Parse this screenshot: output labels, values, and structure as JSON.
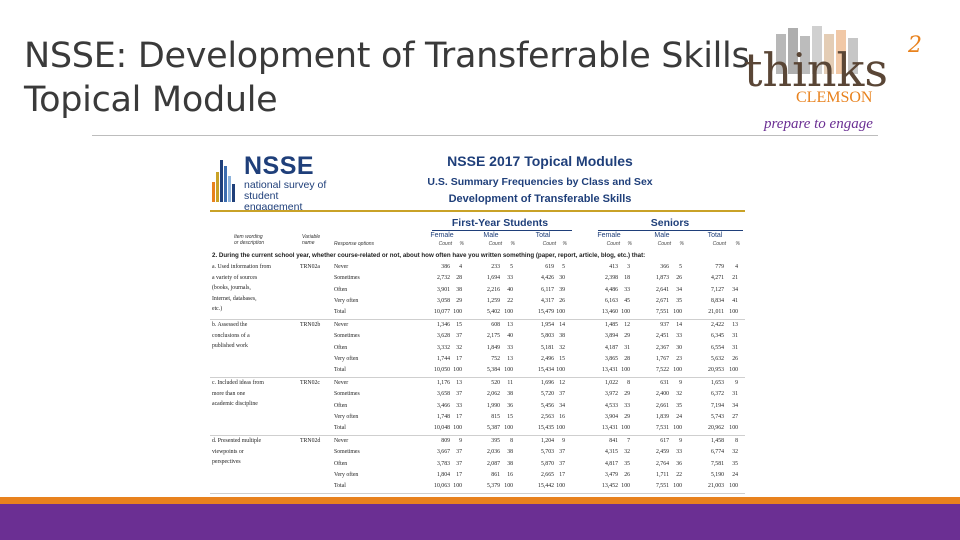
{
  "slide": {
    "title_line1": "NSSE: Development of Transferrable Skills",
    "title_line2": "Topical Module"
  },
  "logo": {
    "brand": "thinks",
    "superscript": "2",
    "institution": "CLEMSON",
    "tagline": "prepare to engage"
  },
  "colors": {
    "orange": "#e8821e",
    "purple": "#6b2f93",
    "nsse_blue": "#1f3f7a",
    "gold": "#c9a227"
  },
  "doc": {
    "nsse_word": "NSSE",
    "nsse_sub1": "national survey of",
    "nsse_sub2": "student engagement",
    "heading": "NSSE 2017 Topical Modules",
    "subheading": "U.S. Summary Frequencies by Class and Sex",
    "module": "Development of Transferable Skills",
    "group_fy": "First-Year Students",
    "group_sr": "Seniors",
    "sub_labels": [
      "Female",
      "Male",
      "Total",
      "Female",
      "Male",
      "Total"
    ],
    "mini_labels": [
      "Count",
      "%",
      "Count",
      "%",
      "Count",
      "%",
      "Count",
      "%",
      "Count",
      "%",
      "Count",
      "%"
    ],
    "col_item1": "Item wording",
    "col_item2": "or description",
    "col_var1": "Variable",
    "col_var2": "name",
    "col_resp": "Response options",
    "question": "2. During the current school year, whether course-related or not, about how often have you written something (paper, report, article, blog, etc.) that:",
    "items": [
      {
        "label": [
          "a. Used information from",
          "a variety of sources",
          "(books, journals,",
          "Internet, databases,",
          "etc.)"
        ],
        "var": "TRN02a",
        "rows": [
          [
            "Never",
            "386",
            "4",
            "233",
            "5",
            "619",
            "5",
            "413",
            "3",
            "366",
            "5",
            "779",
            "4"
          ],
          [
            "Sometimes",
            "2,732",
            "28",
            "1,694",
            "33",
            "4,426",
            "30",
            "2,398",
            "18",
            "1,873",
            "26",
            "4,271",
            "21"
          ],
          [
            "Often",
            "3,901",
            "38",
            "2,216",
            "40",
            "6,117",
            "39",
            "4,486",
            "33",
            "2,641",
            "34",
            "7,127",
            "34"
          ],
          [
            "Very often",
            "3,058",
            "29",
            "1,259",
            "22",
            "4,317",
            "26",
            "6,163",
            "45",
            "2,671",
            "35",
            "8,834",
            "41"
          ],
          [
            "Total",
            "10,077",
            "100",
            "5,402",
            "100",
            "15,479",
            "100",
            "13,460",
            "100",
            "7,551",
            "100",
            "21,011",
            "100"
          ]
        ]
      },
      {
        "label": [
          "b. Assessed the",
          "conclusions of a",
          "published work"
        ],
        "var": "TRN02b",
        "rows": [
          [
            "Never",
            "1,346",
            "15",
            "608",
            "13",
            "1,954",
            "14",
            "1,485",
            "12",
            "937",
            "14",
            "2,422",
            "13"
          ],
          [
            "Sometimes",
            "3,628",
            "37",
            "2,175",
            "40",
            "5,803",
            "38",
            "3,894",
            "29",
            "2,451",
            "33",
            "6,345",
            "31"
          ],
          [
            "Often",
            "3,332",
            "32",
            "1,849",
            "33",
            "5,181",
            "32",
            "4,187",
            "31",
            "2,367",
            "30",
            "6,554",
            "31"
          ],
          [
            "Very often",
            "1,744",
            "17",
            "752",
            "13",
            "2,496",
            "15",
            "3,865",
            "28",
            "1,767",
            "23",
            "5,632",
            "26"
          ],
          [
            "Total",
            "10,050",
            "100",
            "5,384",
            "100",
            "15,434",
            "100",
            "13,431",
            "100",
            "7,522",
            "100",
            "20,953",
            "100"
          ]
        ]
      },
      {
        "label": [
          "c. Included ideas from",
          "more than one",
          "academic discipline"
        ],
        "var": "TRN02c",
        "rows": [
          [
            "Never",
            "1,176",
            "13",
            "520",
            "11",
            "1,696",
            "12",
            "1,022",
            "8",
            "631",
            "9",
            "1,653",
            "9"
          ],
          [
            "Sometimes",
            "3,658",
            "37",
            "2,062",
            "38",
            "5,720",
            "37",
            "3,972",
            "29",
            "2,400",
            "32",
            "6,372",
            "31"
          ],
          [
            "Often",
            "3,466",
            "33",
            "1,990",
            "36",
            "5,456",
            "34",
            "4,533",
            "33",
            "2,661",
            "35",
            "7,194",
            "34"
          ],
          [
            "Very often",
            "1,748",
            "17",
            "815",
            "15",
            "2,563",
            "16",
            "3,904",
            "29",
            "1,839",
            "24",
            "5,743",
            "27"
          ],
          [
            "Total",
            "10,048",
            "100",
            "5,387",
            "100",
            "15,435",
            "100",
            "13,431",
            "100",
            "7,531",
            "100",
            "20,962",
            "100"
          ]
        ]
      },
      {
        "label": [
          "d. Presented multiple",
          "viewpoints or",
          "perspectives"
        ],
        "var": "TRN02d",
        "rows": [
          [
            "Never",
            "809",
            "9",
            "395",
            "8",
            "1,204",
            "9",
            "841",
            "7",
            "617",
            "9",
            "1,458",
            "8"
          ],
          [
            "Sometimes",
            "3,667",
            "37",
            "2,036",
            "38",
            "5,703",
            "37",
            "4,315",
            "32",
            "2,459",
            "33",
            "6,774",
            "32"
          ],
          [
            "Often",
            "3,783",
            "37",
            "2,087",
            "38",
            "5,870",
            "37",
            "4,817",
            "35",
            "2,764",
            "36",
            "7,581",
            "35"
          ],
          [
            "Very often",
            "1,804",
            "17",
            "861",
            "16",
            "2,665",
            "17",
            "3,479",
            "26",
            "1,711",
            "22",
            "5,190",
            "24"
          ],
          [
            "Total",
            "10,063",
            "100",
            "5,379",
            "100",
            "15,442",
            "100",
            "13,452",
            "100",
            "7,551",
            "100",
            "21,003",
            "100"
          ]
        ]
      }
    ]
  }
}
